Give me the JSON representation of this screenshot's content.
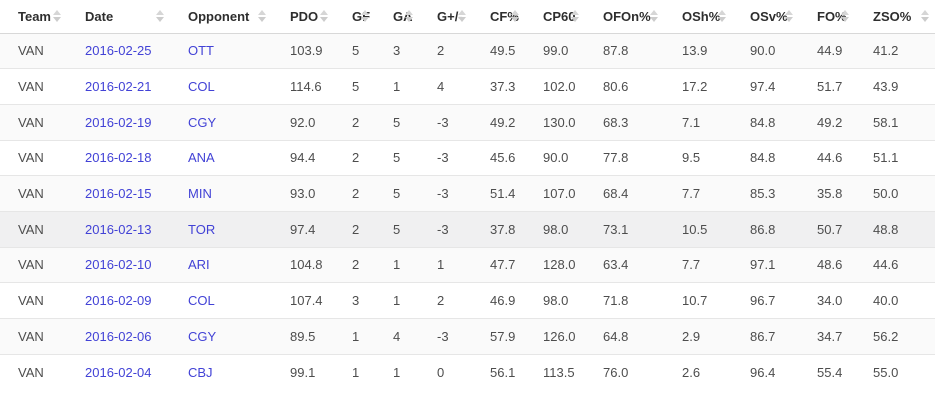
{
  "table": {
    "columns": [
      {
        "key": "team",
        "label": "Team"
      },
      {
        "key": "date",
        "label": "Date"
      },
      {
        "key": "opponent",
        "label": "Opponent"
      },
      {
        "key": "pdo",
        "label": "PDO"
      },
      {
        "key": "gf",
        "label": "GF"
      },
      {
        "key": "ga",
        "label": "GA"
      },
      {
        "key": "g-plus-minus",
        "label": "G+/-"
      },
      {
        "key": "cf-pct",
        "label": "CF%"
      },
      {
        "key": "cp60",
        "label": "CP60"
      },
      {
        "key": "ofon-pct",
        "label": "OFOn%"
      },
      {
        "key": "osh-pct",
        "label": "OSh%"
      },
      {
        "key": "osv-pct",
        "label": "OSv%"
      },
      {
        "key": "fo-pct",
        "label": "FO%"
      },
      {
        "key": "zso-pct",
        "label": "ZSO%"
      }
    ],
    "link_column_indexes": [
      1,
      2
    ],
    "hovered_row_index": 5,
    "rows": [
      {
        "cells": [
          "VAN",
          "2016-02-25",
          "OTT",
          "103.9",
          "5",
          "3",
          "2",
          "49.5",
          "99.0",
          "87.8",
          "13.9",
          "90.0",
          "44.9",
          "41.2"
        ]
      },
      {
        "cells": [
          "VAN",
          "2016-02-21",
          "COL",
          "114.6",
          "5",
          "1",
          "4",
          "37.3",
          "102.0",
          "80.6",
          "17.2",
          "97.4",
          "51.7",
          "43.9"
        ]
      },
      {
        "cells": [
          "VAN",
          "2016-02-19",
          "CGY",
          "92.0",
          "2",
          "5",
          "-3",
          "49.2",
          "130.0",
          "68.3",
          "7.1",
          "84.8",
          "49.2",
          "58.1"
        ]
      },
      {
        "cells": [
          "VAN",
          "2016-02-18",
          "ANA",
          "94.4",
          "2",
          "5",
          "-3",
          "45.6",
          "90.0",
          "77.8",
          "9.5",
          "84.8",
          "44.6",
          "51.1"
        ]
      },
      {
        "cells": [
          "VAN",
          "2016-02-15",
          "MIN",
          "93.0",
          "2",
          "5",
          "-3",
          "51.4",
          "107.0",
          "68.4",
          "7.7",
          "85.3",
          "35.8",
          "50.0"
        ]
      },
      {
        "cells": [
          "VAN",
          "2016-02-13",
          "TOR",
          "97.4",
          "2",
          "5",
          "-3",
          "37.8",
          "98.0",
          "73.1",
          "10.5",
          "86.8",
          "50.7",
          "48.8"
        ]
      },
      {
        "cells": [
          "VAN",
          "2016-02-10",
          "ARI",
          "104.8",
          "2",
          "1",
          "1",
          "47.7",
          "128.0",
          "63.4",
          "7.7",
          "97.1",
          "48.6",
          "44.6"
        ]
      },
      {
        "cells": [
          "VAN",
          "2016-02-09",
          "COL",
          "107.4",
          "3",
          "1",
          "2",
          "46.9",
          "98.0",
          "71.8",
          "10.7",
          "96.7",
          "34.0",
          "40.0"
        ]
      },
      {
        "cells": [
          "VAN",
          "2016-02-06",
          "CGY",
          "89.5",
          "1",
          "4",
          "-3",
          "57.9",
          "126.0",
          "64.8",
          "2.9",
          "86.7",
          "34.7",
          "56.2"
        ]
      },
      {
        "cells": [
          "VAN",
          "2016-02-04",
          "CBJ",
          "99.1",
          "1",
          "1",
          "0",
          "56.1",
          "113.5",
          "76.0",
          "2.6",
          "96.4",
          "55.4",
          "55.0"
        ]
      }
    ],
    "icons": {
      "sort": "sort-arrows-icon"
    },
    "colors": {
      "link": "#4242d6",
      "header_text": "#2e2e2e",
      "body_text": "#4d4d4d",
      "row_stripe": "#fafafa",
      "row_hover": "#f0f0f1",
      "row_border": "#e6e6e6",
      "header_border": "#d8d8d8",
      "sort_icon": "#d0d0d0"
    }
  }
}
